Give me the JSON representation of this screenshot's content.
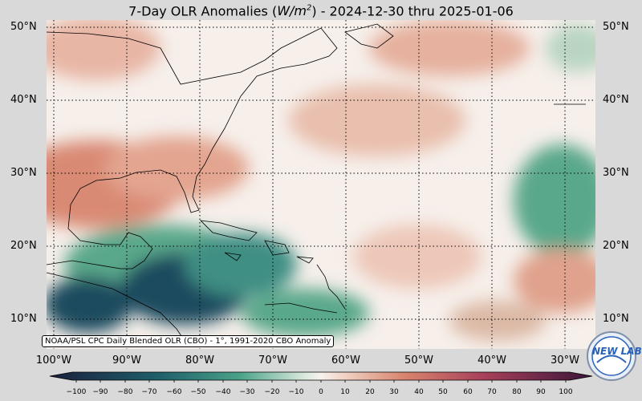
{
  "title": {
    "prefix": "7-Day OLR Anomalies (",
    "unit_base": "W/m",
    "unit_exp": "2",
    "suffix": ") - 2024-12-30 thru 2025-01-06"
  },
  "latitude_labels": [
    "50°N",
    "40°N",
    "30°N",
    "20°N",
    "10°N"
  ],
  "longitude_labels": [
    "100°W",
    "90°W",
    "80°W",
    "70°W",
    "60°W",
    "50°W",
    "40°W",
    "30°W"
  ],
  "attribution": "NOAA/PSL CPC Daily Blended OLR (CBO) - 1°, 1991-2020 CBO Anomaly",
  "colorbar": {
    "ticks": [
      "−100",
      "−90",
      "−80",
      "−70",
      "−60",
      "−50",
      "−40",
      "−30",
      "−20",
      "−10",
      "0",
      "10",
      "20",
      "30",
      "40",
      "50",
      "60",
      "70",
      "80",
      "90",
      "100"
    ],
    "colors": {
      "low": "#1a1f3d",
      "mid_low": "#2a8b78",
      "zero": "#f8f2ee",
      "mid_high": "#d9866f",
      "high": "#3a1438"
    }
  },
  "logo": {
    "text": "NEW LAB"
  },
  "map": {
    "type": "anomaly shading with coastlines and dotted graticule",
    "region": "Western Atlantic, Gulf of Mexico, Caribbean",
    "lat_range_deg": [
      6,
      51
    ],
    "lon_range_deg": [
      -102,
      -28
    ],
    "features": [
      {
        "name": "Central America / Caribbean",
        "anomaly": "strongly negative (−60 to −90)"
      },
      {
        "name": "Gulf of Mexico / southern US",
        "anomaly": "positive (+20 to +40)"
      },
      {
        "name": "Eastern subtropical Atlantic near 30°W, 25-30°N",
        "anomaly": "negative (−20 to −40)"
      },
      {
        "name": "Central Atlantic 35-45°N",
        "anomaly": "positive (+10 to +30)"
      }
    ]
  }
}
